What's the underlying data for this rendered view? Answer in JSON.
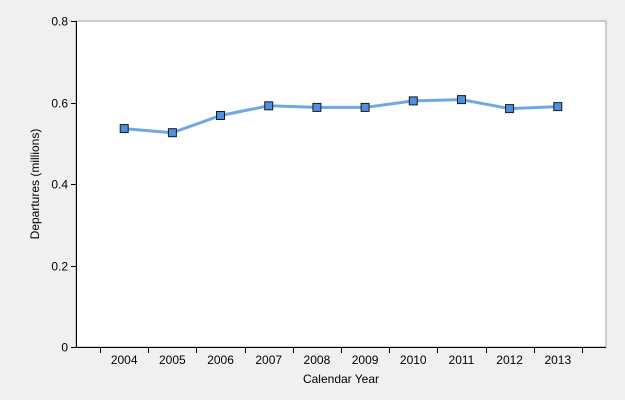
{
  "chart_data": {
    "type": "line",
    "title": "",
    "xlabel": "Calendar Year",
    "ylabel": "Departures (millions)",
    "categories": [
      "2004",
      "2005",
      "2006",
      "2007",
      "2008",
      "2009",
      "2010",
      "2011",
      "2012",
      "2013"
    ],
    "series": [
      {
        "values": [
          0.536,
          0.526,
          0.568,
          0.592,
          0.588,
          0.588,
          0.604,
          0.607,
          0.585,
          0.59
        ]
      }
    ],
    "ylim": [
      0,
      0.8
    ],
    "yticks": [
      0,
      0.2,
      0.4,
      0.6,
      0.8
    ],
    "ytick_labels": [
      "0",
      "0.2",
      "0.4",
      "0.6",
      "0.8"
    ],
    "grid": false,
    "legend": "none",
    "colors": {
      "line": "#6fa8e6",
      "marker_fill": "#4f8fdc",
      "marker_stroke": "#1a1a1a",
      "plot_background": "#ffffff",
      "figure_background": "#f0f0f0",
      "axis": "#000000"
    }
  }
}
